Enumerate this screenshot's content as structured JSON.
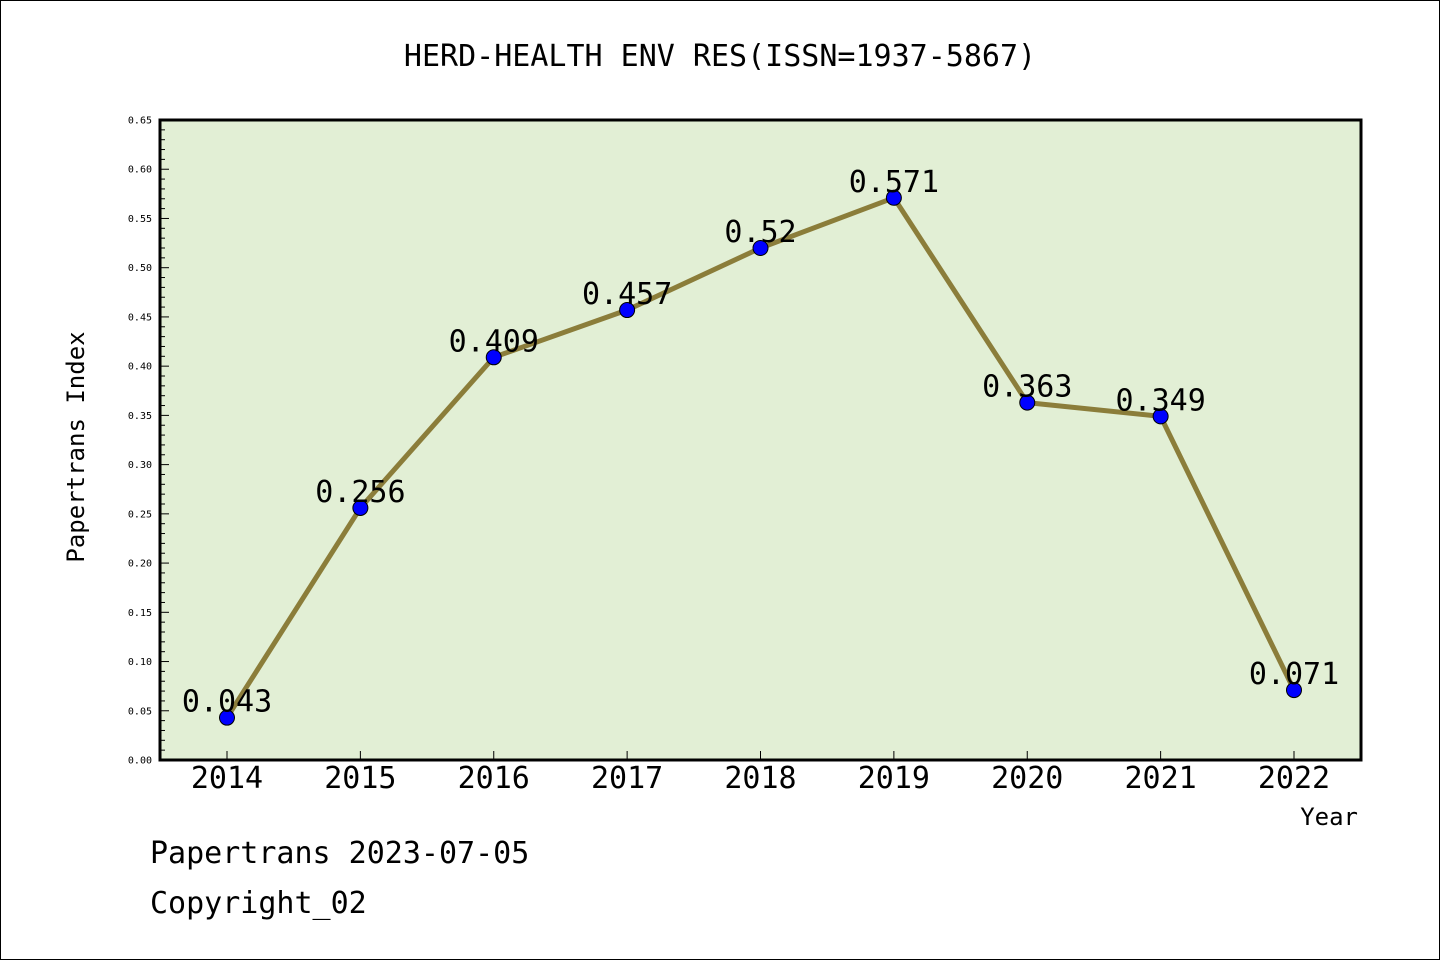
{
  "chart_data": {
    "type": "line",
    "title": "HERD-HEALTH ENV RES(ISSN=1937-5867)",
    "xlabel": "Year",
    "ylabel": "Papertrans Index",
    "categories": [
      "2014",
      "2015",
      "2016",
      "2017",
      "2018",
      "2019",
      "2020",
      "2021",
      "2022"
    ],
    "series": [
      {
        "values": [
          0.043,
          0.256,
          0.409,
          0.457,
          0.52,
          0.571,
          0.363,
          0.349,
          0.071
        ],
        "data_labels": [
          "0.043",
          "0.256",
          "0.409",
          "0.457",
          "0.52",
          "0.571",
          "0.363",
          "0.349",
          "0.071"
        ]
      }
    ],
    "ylim": [
      0,
      0.65
    ],
    "yticks": [
      "0.00",
      "0.05",
      "0.10",
      "0.15",
      "0.20",
      "0.25",
      "0.30",
      "0.35",
      "0.40",
      "0.45",
      "0.50",
      "0.55",
      "0.60",
      "0.65"
    ],
    "grid": false,
    "colors": {
      "plot_background": "#e2efd5",
      "line": "#8b7d3a",
      "marker": "#0000ff"
    }
  },
  "footer": {
    "source": "Papertrans 2023-07-05",
    "copyright": "Copyright_02"
  }
}
